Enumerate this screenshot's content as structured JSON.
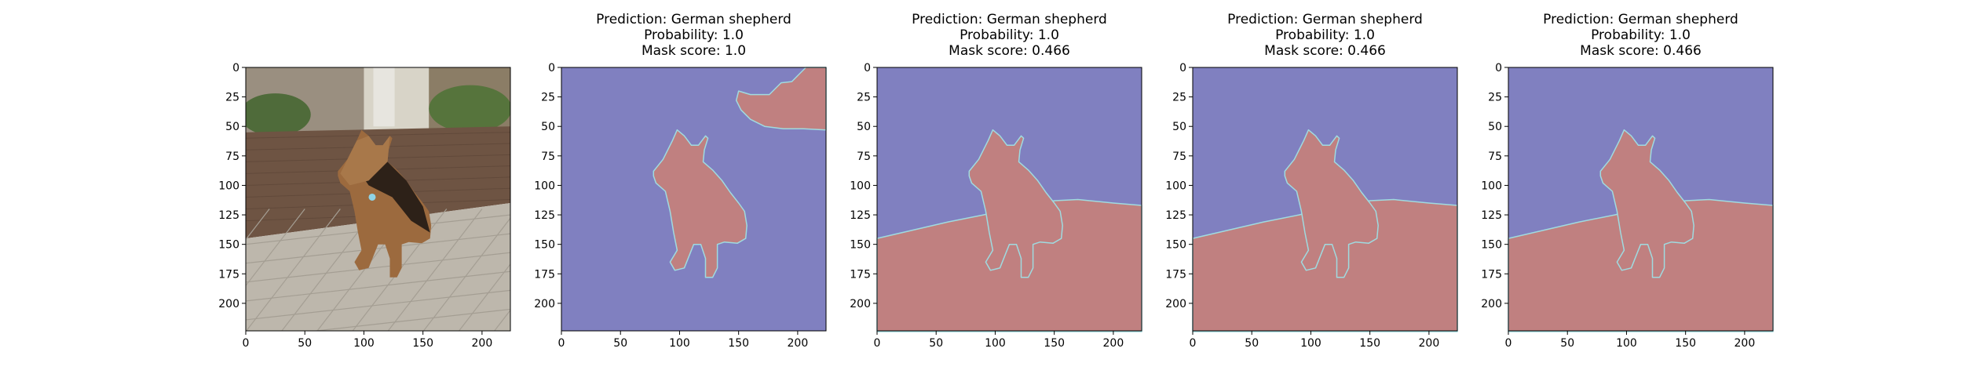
{
  "panels": [
    {
      "id": "input",
      "kind": "photo",
      "title_lines": [],
      "photo": {
        "sky": "#d8d4c8",
        "wall": "#6e5443",
        "floor": "#bdb7ac",
        "dog_dark": "#2d2118",
        "dog_tan": "#9c6a3e"
      }
    },
    {
      "id": "mask-1",
      "kind": "mask",
      "title_lines": [
        "Prediction: German shepherd",
        "Probability: 1.0",
        "Mask score: 1.0"
      ],
      "mask_variant": "dog_and_corner"
    },
    {
      "id": "mask-2",
      "kind": "mask",
      "title_lines": [
        "Prediction: German shepherd",
        "Probability: 1.0",
        "Mask score: 0.466"
      ],
      "mask_variant": "dog_and_floor"
    },
    {
      "id": "mask-3",
      "kind": "mask",
      "title_lines": [
        "Prediction: German shepherd",
        "Probability: 1.0",
        "Mask score: 0.466"
      ],
      "mask_variant": "dog_and_floor"
    },
    {
      "id": "mask-4",
      "kind": "mask",
      "title_lines": [
        "Prediction: German shepherd",
        "Probability: 1.0",
        "Mask score: 0.466"
      ],
      "mask_variant": "dog_and_floor"
    }
  ],
  "axes": {
    "x_ticks": [
      "0",
      "50",
      "100",
      "150",
      "200"
    ],
    "y_ticks": [
      "0",
      "25",
      "50",
      "75",
      "100",
      "125",
      "150",
      "175",
      "200"
    ]
  },
  "colors": {
    "background_mask": "#8080c0",
    "foreground_mask": "#c08080",
    "edge": "#9fdbe0"
  }
}
